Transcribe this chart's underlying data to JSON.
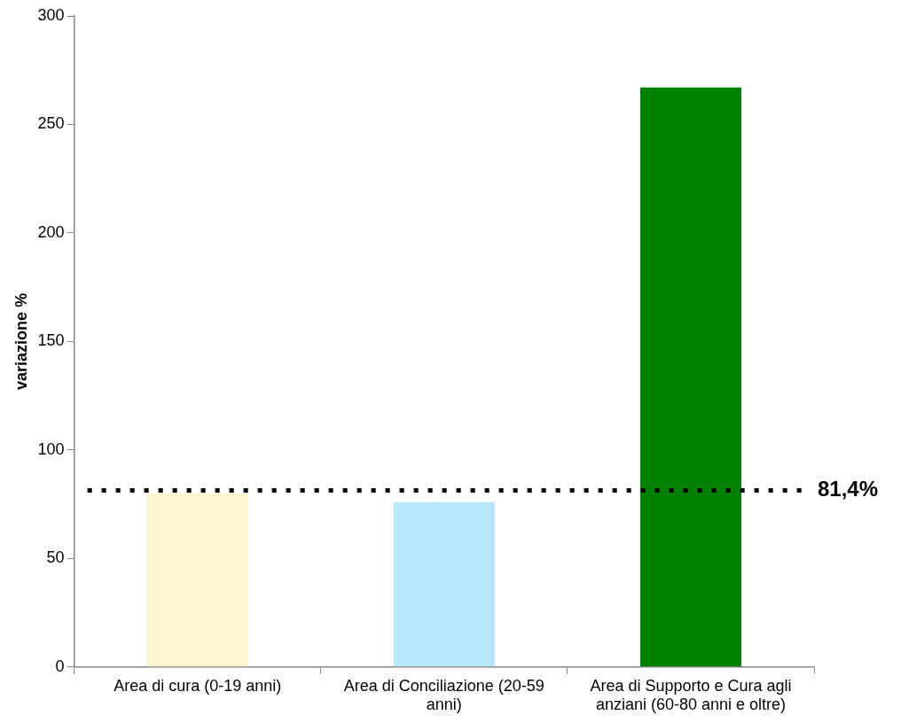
{
  "chart_data": {
    "type": "bar",
    "ylabel": "variazione %",
    "categories": [
      "Area di cura (0-19 anni)",
      "Area di Conciliazione (20-59 anni)",
      "Area di Supporto e Cura agli anziani (60-80 anni e oltre)"
    ],
    "values": [
      80,
      76,
      267
    ],
    "colors": [
      "#fff6d0",
      "#b8e6fb",
      "#007f00"
    ],
    "ylim": [
      0,
      300
    ],
    "yticks": [
      0,
      50,
      100,
      150,
      200,
      250,
      300
    ],
    "grid": false,
    "legend": false,
    "ref_lines": [
      {
        "axis": "y",
        "value": 81.4,
        "label": "81,4%",
        "color": "#000000",
        "line_style": "dotted"
      }
    ]
  }
}
